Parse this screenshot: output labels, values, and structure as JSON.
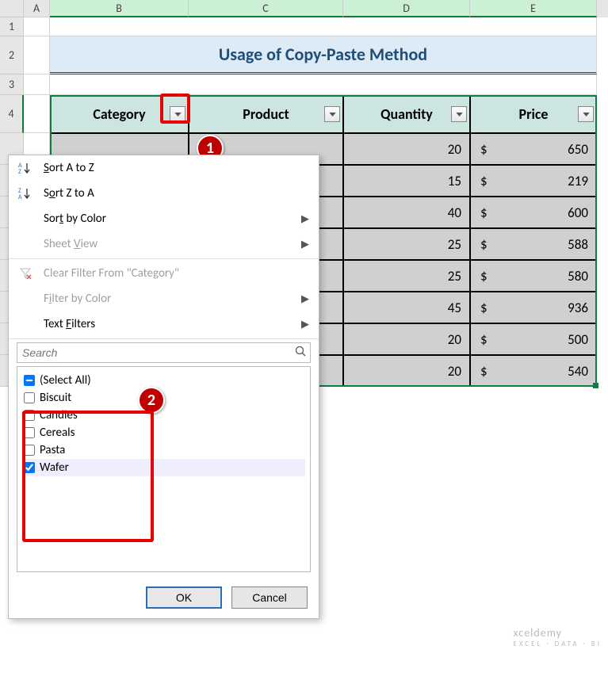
{
  "columns": [
    {
      "letter": "A",
      "width": 33,
      "selected": false
    },
    {
      "letter": "B",
      "width": 175,
      "selected": true
    },
    {
      "letter": "C",
      "width": 195,
      "selected": true
    },
    {
      "letter": "D",
      "width": 160,
      "selected": true
    },
    {
      "letter": "E",
      "width": 160,
      "selected": true
    }
  ],
  "row_heights": {
    "1": 24,
    "2": 48,
    "3": 26,
    "4": 48,
    "data": 40
  },
  "title": "Usage of Copy-Paste Method",
  "title_bg": "#ddebf7",
  "title_color": "#1f4e79",
  "headers": [
    "Category",
    "Product",
    "Quantity",
    "Price"
  ],
  "header_bg": "#cce5e1",
  "data_bg": "#d0d0d0",
  "selection_color": "#107c41",
  "data_rows": [
    {
      "qty": 20,
      "price": 650
    },
    {
      "qty": 15,
      "price": 219
    },
    {
      "qty": 40,
      "price": 600
    },
    {
      "qty": 25,
      "price": 588
    },
    {
      "qty": 25,
      "price": 580
    },
    {
      "qty": 45,
      "price": 936
    },
    {
      "qty": 20,
      "price": 500
    },
    {
      "qty": 20,
      "price": 540
    }
  ],
  "currency_symbol": "$",
  "dropdown": {
    "sort_asc": "Sort A to Z",
    "sort_desc": "Sort Z to A",
    "sort_color": "Sort by Color",
    "sheet_view": "Sheet View",
    "clear_filter": "Clear Filter From \"Category\"",
    "filter_color": "Filter by Color",
    "text_filters": "Text Filters",
    "search_placeholder": "Search",
    "items": [
      {
        "label": "(Select All)",
        "checked": false,
        "indeterminate": true
      },
      {
        "label": "Biscuit",
        "checked": false
      },
      {
        "label": "Candies",
        "checked": false
      },
      {
        "label": "Cereals",
        "checked": false
      },
      {
        "label": "Pasta",
        "checked": false
      },
      {
        "label": "Wafer",
        "checked": true
      }
    ],
    "ok": "OK",
    "cancel": "Cancel"
  },
  "annotations": {
    "badge1": "1",
    "badge2": "2",
    "annot_color": "#e60000"
  },
  "watermark": {
    "main": "xceldemy",
    "sub": "EXCEL · DATA · BI"
  }
}
